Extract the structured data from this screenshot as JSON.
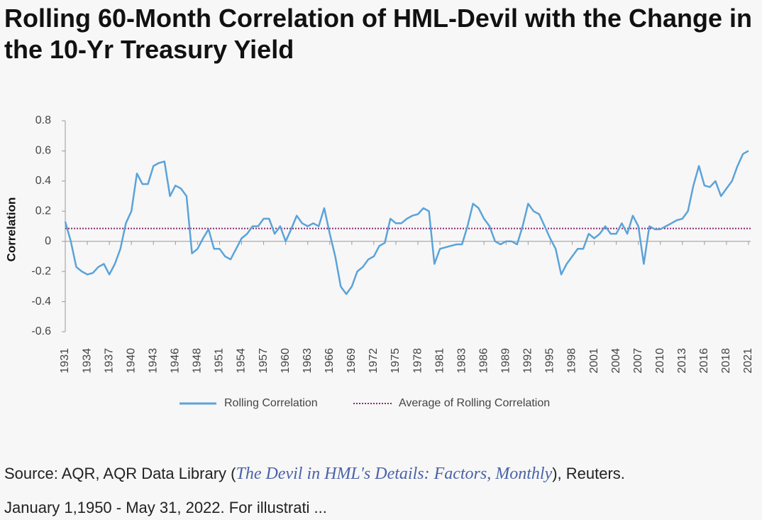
{
  "title": "Rolling 60-Month Correlation of HML-Devil with the Change in the 10-Yr Treasury Yield",
  "chart_data": {
    "type": "line",
    "y_label": "Correlation",
    "categories": [
      "1931",
      null,
      null,
      null,
      "1934",
      null,
      null,
      null,
      "1937",
      null,
      null,
      null,
      "1940",
      null,
      null,
      null,
      "1943",
      null,
      null,
      null,
      "1946",
      null,
      null,
      null,
      "1948",
      null,
      null,
      null,
      "1951",
      null,
      null,
      null,
      "1954",
      null,
      null,
      null,
      "1957",
      null,
      null,
      null,
      "1960",
      null,
      null,
      null,
      "1963",
      null,
      null,
      null,
      "1966",
      null,
      null,
      null,
      "1969",
      null,
      null,
      null,
      "1972",
      null,
      null,
      null,
      "1975",
      null,
      null,
      null,
      "1978",
      null,
      null,
      null,
      "1981",
      null,
      null,
      null,
      "1983",
      null,
      null,
      null,
      "1986",
      null,
      null,
      null,
      "1989",
      null,
      null,
      null,
      "1992",
      null,
      null,
      null,
      "1995",
      null,
      null,
      null,
      "1998",
      null,
      null,
      null,
      "2001",
      null,
      null,
      null,
      "2004",
      null,
      null,
      null,
      "2007",
      null,
      null,
      null,
      "2010",
      null,
      null,
      null,
      "2013",
      null,
      null,
      null,
      "2016",
      null,
      null,
      null,
      "2018",
      null,
      null,
      null,
      "2021"
    ],
    "series": [
      {
        "name": "Rolling Correlation",
        "color": "#5ba3d9",
        "values": [
          0.13,
          0.0,
          -0.17,
          -0.2,
          -0.22,
          -0.21,
          -0.17,
          -0.15,
          -0.22,
          -0.15,
          -0.05,
          0.12,
          0.2,
          0.45,
          0.38,
          0.38,
          0.5,
          0.52,
          0.53,
          0.3,
          0.37,
          0.35,
          0.3,
          -0.08,
          -0.05,
          0.02,
          0.08,
          -0.05,
          -0.05,
          -0.1,
          -0.12,
          -0.05,
          0.02,
          0.05,
          0.1,
          0.1,
          0.15,
          0.15,
          0.05,
          0.1,
          0.0,
          0.08,
          0.17,
          0.12,
          0.1,
          0.12,
          0.1,
          0.22,
          0.05,
          -0.1,
          -0.3,
          -0.35,
          -0.3,
          -0.2,
          -0.17,
          -0.12,
          -0.1,
          -0.03,
          -0.01,
          0.15,
          0.12,
          0.12,
          0.15,
          0.17,
          0.18,
          0.22,
          0.2,
          -0.15,
          -0.05,
          -0.04,
          -0.03,
          -0.02,
          -0.02,
          0.1,
          0.25,
          0.22,
          0.15,
          0.1,
          0.0,
          -0.02,
          0.0,
          0.0,
          -0.02,
          0.1,
          0.25,
          0.2,
          0.18,
          0.1,
          0.02,
          -0.05,
          -0.22,
          -0.15,
          -0.1,
          -0.05,
          -0.05,
          0.05,
          0.02,
          0.05,
          0.1,
          0.05,
          0.05,
          0.12,
          0.05,
          0.17,
          0.1,
          -0.15,
          0.1,
          0.08,
          0.08,
          0.1,
          0.12,
          0.14,
          0.15,
          0.2,
          0.37,
          0.5,
          0.37,
          0.36,
          0.4,
          0.3,
          0.35,
          0.4,
          0.5,
          0.58,
          0.6
        ]
      }
    ],
    "reference_line": {
      "name": "Average of Rolling Correlation",
      "value": 0.085,
      "color": "#8b2a6b"
    },
    "ylim": [
      -0.6,
      0.8
    ],
    "yticks": [
      {
        "value": -0.6,
        "label": "-0.6"
      },
      {
        "value": -0.4,
        "label": "-0.4"
      },
      {
        "value": -0.2,
        "label": "-0.2"
      },
      0,
      {
        "value": 0.2,
        "label": "0.2"
      },
      {
        "value": 0.4,
        "label": "0.4"
      },
      {
        "value": 0.6,
        "label": "0.6"
      },
      {
        "value": 0.8,
        "label": "0.8"
      }
    ]
  },
  "source": {
    "prefix": "Source: AQR, AQR Data Library (",
    "link": "The Devil in HML's Details: Factors, Monthly",
    "suffix": "), Reuters.",
    "line2": "January 1,1950 - May 31, 2022. For illustrati ..."
  }
}
